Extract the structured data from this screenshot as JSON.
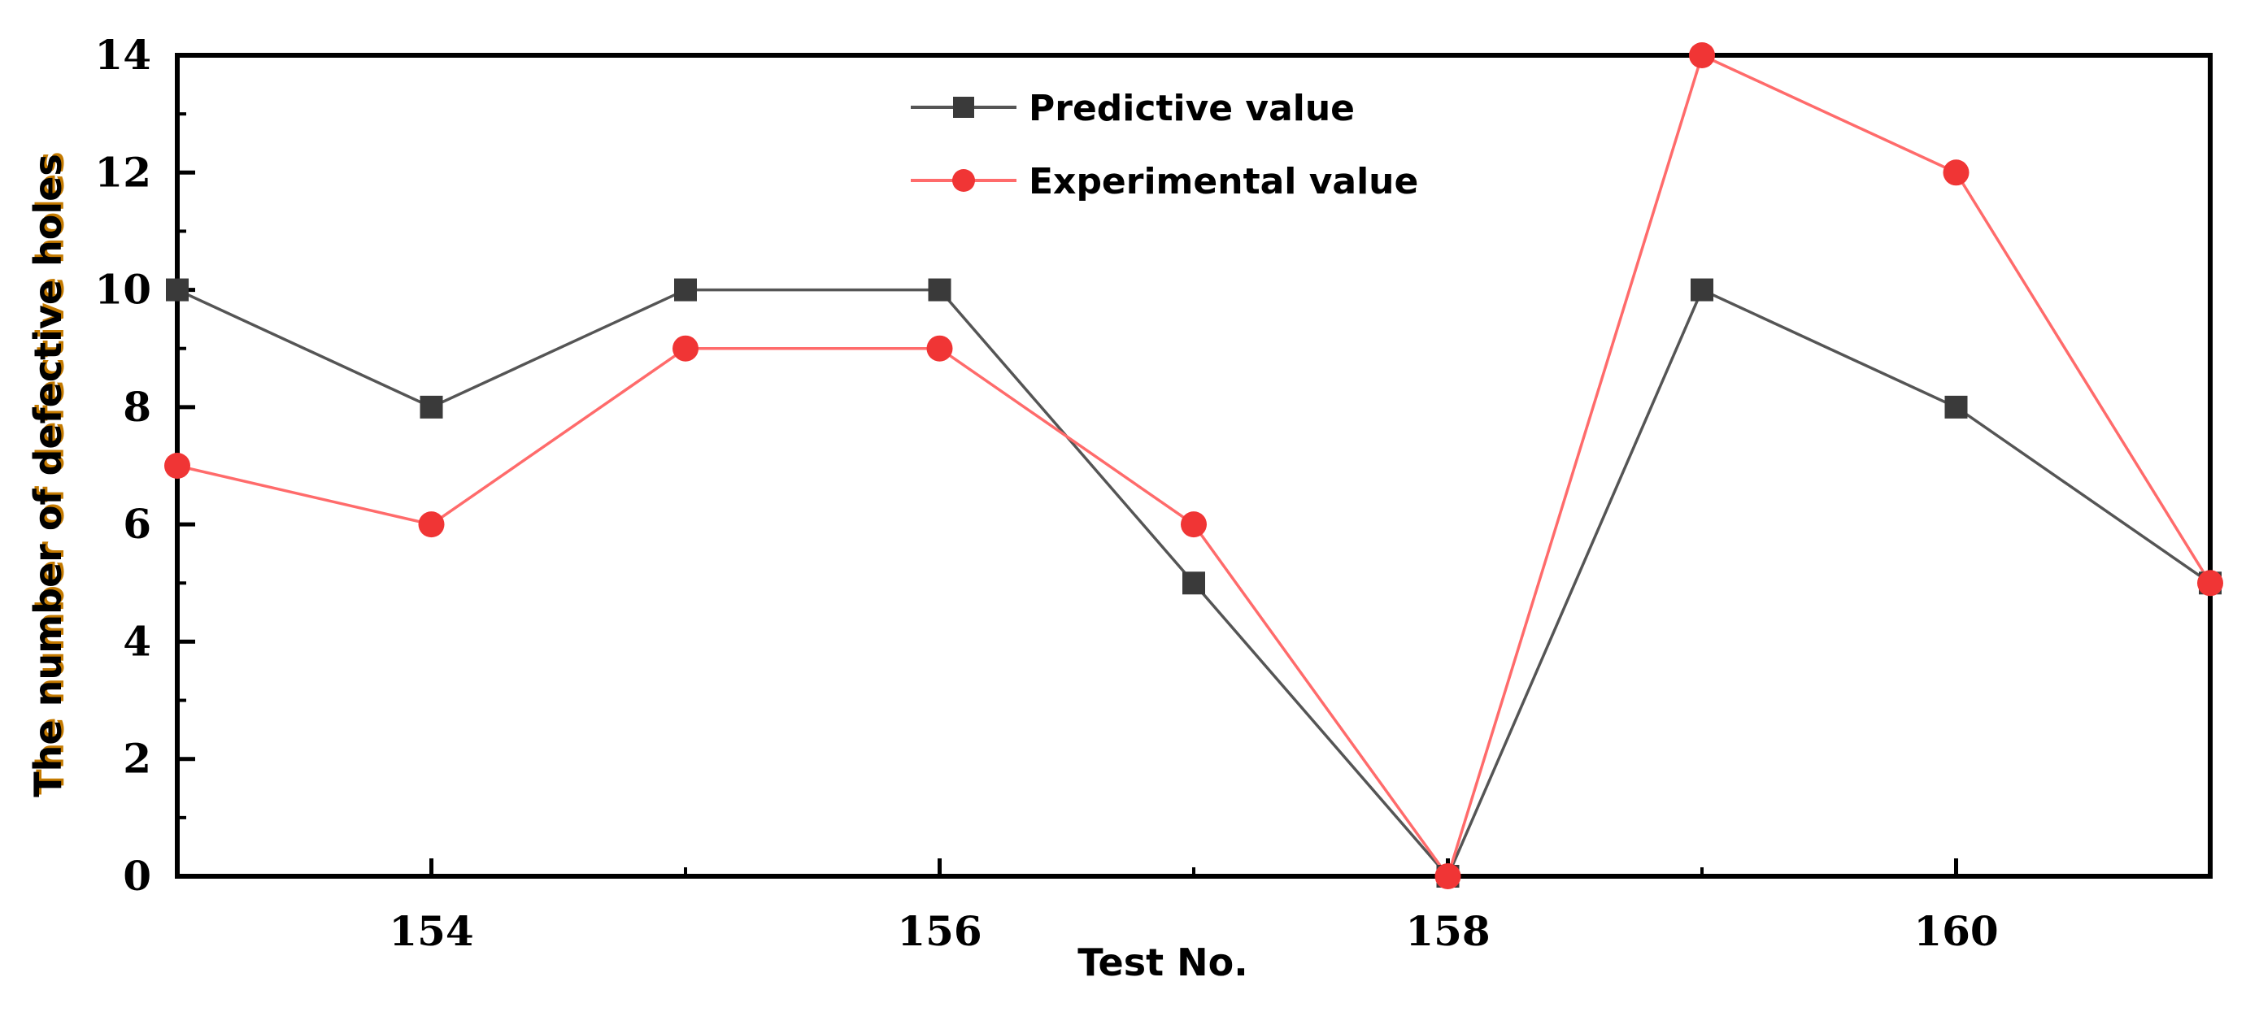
{
  "chart_data": {
    "type": "line",
    "title": "",
    "xlabel": "Test No.",
    "ylabel": "The number of defective holes",
    "x": [
      153,
      154,
      155,
      156,
      157,
      158,
      159,
      160,
      161
    ],
    "xlim": [
      153,
      161
    ],
    "ylim": [
      0,
      14
    ],
    "x_major_ticks": [
      154,
      156,
      158,
      160
    ],
    "x_tick_labels": [
      "154",
      "156",
      "158",
      "160"
    ],
    "x_minor_ticks": [
      155,
      157,
      159
    ],
    "y_major_ticks": [
      0,
      2,
      4,
      6,
      8,
      10,
      12,
      14
    ],
    "y_tick_labels": [
      "0",
      "2",
      "4",
      "6",
      "8",
      "10",
      "12",
      "14"
    ],
    "y_minor_ticks": [
      1,
      3,
      5,
      7,
      9,
      11,
      13
    ],
    "grid": false,
    "legend_position": "top-center",
    "series": [
      {
        "name": "Predictive value",
        "marker": "square",
        "color": "#555555",
        "marker_color": "#3a3a3a",
        "values": [
          10,
          8,
          10,
          10,
          5,
          0,
          10,
          8,
          5
        ]
      },
      {
        "name": "Experimental value",
        "marker": "circle",
        "color": "#ff6b6b",
        "marker_color": "#f03535",
        "values": [
          7,
          6,
          9,
          9,
          6,
          0,
          14,
          12,
          5
        ]
      }
    ],
    "axis_title_color": "#000000",
    "ylabel_color": "#000000",
    "ylabel_shadow_color": "#c47a00"
  }
}
